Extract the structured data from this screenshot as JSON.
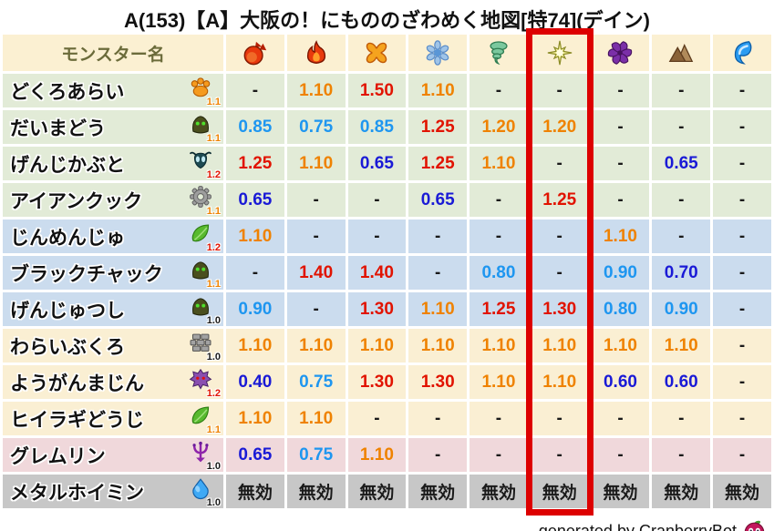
{
  "title": "A(153)【A】大阪の！にもののざわめく地図[特74](デイン)",
  "chart_data": {
    "type": "table",
    "title": "A(153)【A】大阪の！にもののざわめく地図[特74](デイン)",
    "name_header": "モンスター名",
    "element_columns": [
      "fireball-icon",
      "flame-icon",
      "io-burst-icon",
      "snowflake-icon",
      "tornado-icon",
      "dein-star-icon",
      "dark-pinwheel-icon",
      "earth-icon",
      "wave-icon"
    ],
    "highlighted_column_index": 5,
    "rows": [
      {
        "name": "どくろあらい",
        "family_icon": "paw-icon",
        "badge": "1.1",
        "badge_color": "orange",
        "group": "green",
        "values": [
          "-",
          "1.10",
          "1.50",
          "1.10",
          "-",
          "-",
          "-",
          "-",
          "-"
        ]
      },
      {
        "name": "だいまどう",
        "family_icon": "hooded-mage-icon",
        "badge": "1.1",
        "badge_color": "orange",
        "group": "green",
        "values": [
          "0.85",
          "0.75",
          "0.85",
          "1.25",
          "1.20",
          "1.20",
          "-",
          "-",
          "-"
        ]
      },
      {
        "name": "げんじかぶと",
        "family_icon": "beetle-icon",
        "badge": "1.2",
        "badge_color": "red",
        "group": "green",
        "values": [
          "1.25",
          "1.10",
          "0.65",
          "1.25",
          "1.10",
          "-",
          "-",
          "0.65",
          "-"
        ]
      },
      {
        "name": "アイアンクック",
        "family_icon": "gear-icon",
        "badge": "1.1",
        "badge_color": "orange",
        "group": "green",
        "values": [
          "0.65",
          "-",
          "-",
          "0.65",
          "-",
          "1.25",
          "-",
          "-",
          "-"
        ]
      },
      {
        "name": "じんめんじゅ",
        "family_icon": "leaf-icon",
        "badge": "1.2",
        "badge_color": "red",
        "group": "blue",
        "values": [
          "1.10",
          "-",
          "-",
          "-",
          "-",
          "-",
          "1.10",
          "-",
          "-"
        ]
      },
      {
        "name": "ブラックチャック",
        "family_icon": "hooded-mage-icon",
        "badge": "1.1",
        "badge_color": "orange",
        "group": "blue",
        "values": [
          "-",
          "1.40",
          "1.40",
          "-",
          "0.80",
          "-",
          "0.90",
          "0.70",
          "-"
        ]
      },
      {
        "name": "げんじゅつし",
        "family_icon": "hooded-mage-icon",
        "badge": "1.0",
        "badge_color": "black",
        "group": "blue",
        "values": [
          "0.90",
          "-",
          "1.30",
          "1.10",
          "1.25",
          "1.30",
          "0.80",
          "0.90",
          "-"
        ]
      },
      {
        "name": "わらいぶくろ",
        "family_icon": "brick-wall-icon",
        "badge": "1.0",
        "badge_color": "black",
        "group": "tan",
        "values": [
          "1.10",
          "1.10",
          "1.10",
          "1.10",
          "1.10",
          "1.10",
          "1.10",
          "1.10",
          "-"
        ]
      },
      {
        "name": "ようがんまじん",
        "family_icon": "lava-demon-icon",
        "badge": "1.2",
        "badge_color": "red",
        "group": "tan",
        "values": [
          "0.40",
          "0.75",
          "1.30",
          "1.30",
          "1.10",
          "1.10",
          "0.60",
          "0.60",
          "-"
        ]
      },
      {
        "name": "ヒイラギどうじ",
        "family_icon": "leaf-icon",
        "badge": "1.1",
        "badge_color": "orange",
        "group": "tan",
        "values": [
          "1.10",
          "1.10",
          "-",
          "-",
          "-",
          "-",
          "-",
          "-",
          "-"
        ]
      },
      {
        "name": "グレムリン",
        "family_icon": "trident-icon",
        "badge": "1.0",
        "badge_color": "black",
        "group": "pink",
        "values": [
          "0.65",
          "0.75",
          "1.10",
          "-",
          "-",
          "-",
          "-",
          "-",
          "-"
        ]
      },
      {
        "name": "メタルホイミン",
        "family_icon": "slime-icon",
        "badge": "1.0",
        "badge_color": "black",
        "group": "gray",
        "values": [
          "無効",
          "無効",
          "無効",
          "無効",
          "無効",
          "無効",
          "無効",
          "無効",
          "無効"
        ]
      }
    ]
  },
  "highlight": {
    "color": "#DD0000"
  },
  "palette": {
    "red": "#E11300",
    "orange": "#EF8200",
    "lightblue": "#1E96F0",
    "darkblue": "#1A1AD6",
    "black": "#1A1A1A"
  },
  "footer": {
    "credit": "generated by CranberryBot",
    "icon": "cranberry-slime-icon"
  }
}
